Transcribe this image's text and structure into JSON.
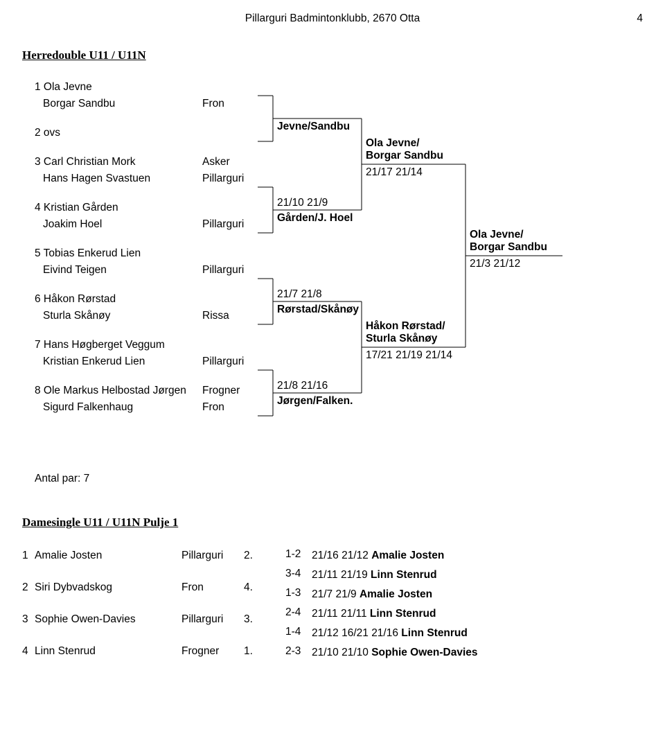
{
  "header": {
    "center": "Pillarguri Badmintonklubb, 2670 Otta",
    "page_number": "4"
  },
  "section1": {
    "title": "Herredouble U11 / U11N",
    "entrants": [
      {
        "num": "1",
        "p1": "Ola Jevne",
        "p2": "Borgar Sandbu",
        "club": "",
        "club2": "Fron"
      },
      {
        "num": "2",
        "p1": "ovs",
        "p2": "",
        "club": "",
        "club2": ""
      },
      {
        "num": "3",
        "p1": "Carl Christian Mork",
        "p2": "Hans Hagen Svastuen",
        "club": "Asker",
        "club2": "Pillarguri"
      },
      {
        "num": "4",
        "p1": "Kristian Gården",
        "p2": "Joakim Hoel",
        "club": "",
        "club2": "Pillarguri"
      },
      {
        "num": "5",
        "p1": "Tobias Enkerud Lien",
        "p2": "Eivind Teigen",
        "club": "",
        "club2": "Pillarguri"
      },
      {
        "num": "6",
        "p1": "Håkon Rørstad",
        "p2": "Sturla Skånøy",
        "club": "",
        "club2": "Rissa"
      },
      {
        "num": "7",
        "p1": "Hans Høgberget Veggum",
        "p2": "Kristian Enkerud Lien",
        "club": "",
        "club2": "Pillarguri"
      },
      {
        "num": "8",
        "p1": "Ole Markus Helbostad Jørgen",
        "p2": "Sigurd Falkenhaug",
        "club": "Frogner",
        "club2": "Fron"
      }
    ],
    "bracket": {
      "r2": [
        {
          "label": "Jevne/Sandbu",
          "score": ""
        },
        {
          "label": "Gården/J. Hoel",
          "score": "21/10 21/9"
        },
        {
          "label": "Rørstad/Skånøy",
          "score": "21/7 21/8"
        },
        {
          "label": "Jørgen/Falken.",
          "score": "21/8 21/16"
        }
      ],
      "r3": [
        {
          "label1": "Ola Jevne/",
          "label2": "Borgar Sandbu",
          "score": "21/17 21/14"
        },
        {
          "label1": "Håkon Rørstad/",
          "label2": "Sturla Skånøy",
          "score": "17/21 21/19 21/14"
        }
      ],
      "final": {
        "label1": "Ola Jevne/",
        "label2": "Borgar Sandbu",
        "score": "21/3 21/12"
      },
      "line_color": "#000000"
    },
    "count_label": "Antal par: 7"
  },
  "section2": {
    "title": "Damesingle U11 / U11N Pulje 1",
    "players": [
      {
        "num": "1",
        "name": "Amalie Josten",
        "club": "Pillarguri",
        "place": "2."
      },
      {
        "num": "2",
        "name": "Siri Dybvadskog",
        "club": "Fron",
        "place": "4."
      },
      {
        "num": "3",
        "name": "Sophie Owen-Davies",
        "club": "Pillarguri",
        "place": "3."
      },
      {
        "num": "4",
        "name": "Linn Stenrud",
        "club": "Frogner",
        "place": "1."
      }
    ],
    "results": [
      {
        "match": "1-2",
        "score": "21/16 21/12",
        "winner": "Amalie Josten"
      },
      {
        "match": "3-4",
        "score": "21/11 21/19",
        "winner": "Linn Stenrud"
      },
      {
        "match": "1-3",
        "score": "21/7 21/9",
        "winner": "Amalie Josten"
      },
      {
        "match": "2-4",
        "score": "21/11 21/11",
        "winner": "Linn Stenrud"
      },
      {
        "match": "1-4",
        "score": "21/12 16/21 21/16",
        "winner": "Linn Stenrud"
      },
      {
        "match": "2-3",
        "score": "21/10 21/10",
        "winner": "Sophie Owen-Davies"
      }
    ]
  },
  "style": {
    "font_body": "Arial",
    "font_title": "Times New Roman",
    "font_size_body": 15.5,
    "font_size_title": 17,
    "text_color": "#000000",
    "background_color": "#ffffff"
  }
}
